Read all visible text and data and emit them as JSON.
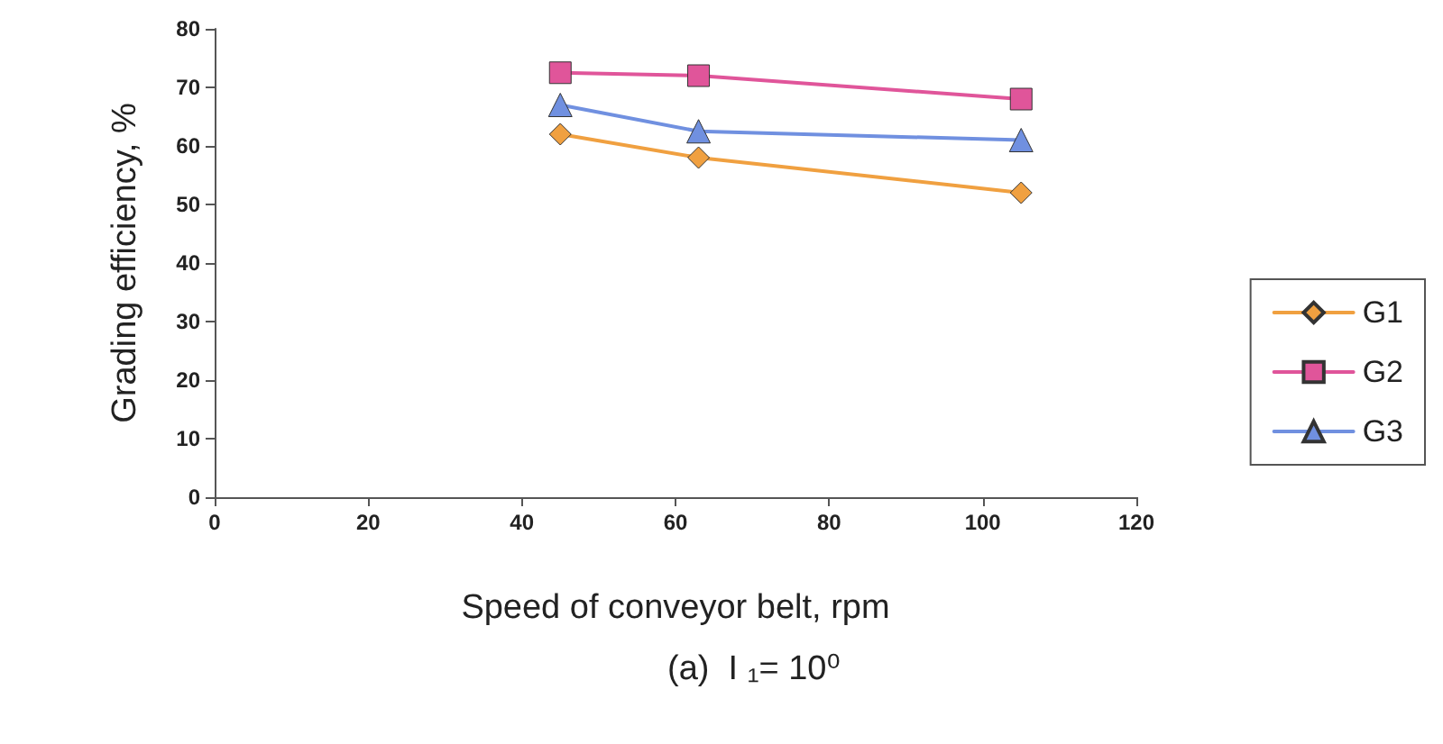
{
  "chart_data": {
    "type": "line",
    "xlabel": "Speed of conveyor belt, rpm",
    "ylabel": "Grading efficiency, %",
    "annotations": [
      "(a)  I ₁= 10⁰"
    ],
    "x": [
      45,
      63,
      105
    ],
    "series": [
      {
        "name": "G1",
        "color": "#f0a040",
        "marker": "diamond",
        "values": [
          62,
          58,
          52
        ]
      },
      {
        "name": "G2",
        "color": "#e0559a",
        "marker": "square",
        "values": [
          72.5,
          72,
          68
        ]
      },
      {
        "name": "G3",
        "color": "#7090e0",
        "marker": "triangle",
        "values": [
          67,
          62.5,
          61
        ]
      }
    ],
    "xlim": [
      0,
      120
    ],
    "xticks": [
      0,
      20,
      40,
      60,
      80,
      100,
      120
    ],
    "ylim": [
      0,
      80
    ],
    "yticks": [
      0,
      10,
      20,
      30,
      40,
      50,
      60,
      70,
      80
    ],
    "grid": false,
    "legend": "right",
    "line_style": "solid"
  }
}
